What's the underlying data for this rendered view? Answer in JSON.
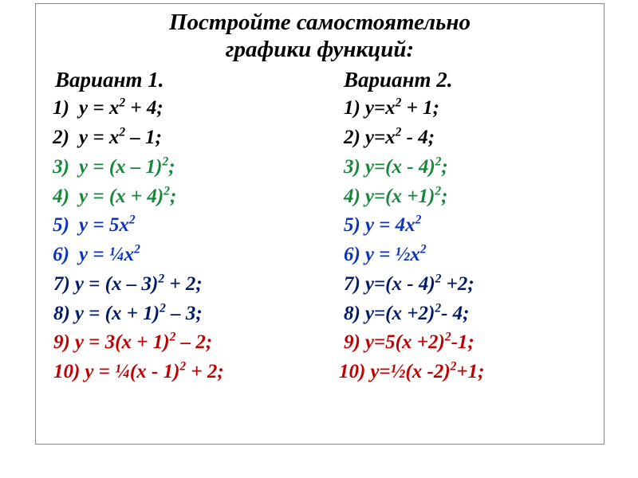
{
  "title_line1": "Постройте самостоятельно",
  "title_line2": "графики функций:",
  "colors": {
    "black": "#000000",
    "green": "#16883a",
    "blue": "#0a33c0",
    "navy": "#001a6a",
    "red": "#c00000",
    "border": "#888888",
    "background": "#ffffff"
  },
  "typography": {
    "family": "Times New Roman",
    "title_fontsize": 29,
    "heading_fontsize": 27,
    "item_fontsize": 25,
    "style": "italic",
    "weight": "bold"
  },
  "variant1": {
    "heading": "Вариант 1.",
    "items": [
      {
        "num": "1)",
        "pre": "у = х",
        "sup": "2",
        "post": " + 4;",
        "color": "black",
        "numstyle": "right"
      },
      {
        "num": "2)",
        "pre": "у = х",
        "sup": "2",
        "post": " – 1;",
        "color": "black",
        "numstyle": "right"
      },
      {
        "num": "3)",
        "pre": "у = (х – 1)",
        "sup": "2",
        "post": ";",
        "color": "green",
        "numstyle": "right"
      },
      {
        "num": "4)",
        "pre": "у = (х + 4)",
        "sup": "2",
        "post": ";",
        "color": "green",
        "numstyle": "right"
      },
      {
        "num": "5)",
        "pre": "у = 5х",
        "sup": "2",
        "post": "",
        "color": "blue",
        "numstyle": "right"
      },
      {
        "num": "6)",
        "pre": "у = ¼х",
        "sup": "2",
        "post": "",
        "color": "blue",
        "numstyle": "right"
      },
      {
        "num": "7)",
        "pre": "у = (х – 3)",
        "sup": "2",
        "post": " + 2;",
        "color": "navy",
        "numstyle": "plain",
        "indent": "b"
      },
      {
        "num": "8)",
        "pre": "у = (х + 1)",
        "sup": "2",
        "post": " – 3;",
        "color": "navy",
        "numstyle": "plain",
        "indent": "b"
      },
      {
        "num": "9)",
        "pre": "у = 3(х + 1)",
        "sup": "2",
        "post": " – 2;",
        "color": "red",
        "numstyle": "plain",
        "indent": "b"
      },
      {
        "num": "10)",
        "pre": "у = ¼(х - 1)",
        "sup": "2",
        "post": " + 2;",
        "color": "red",
        "numstyle": "plain",
        "indent": "b"
      }
    ]
  },
  "variant2": {
    "heading": "Вариант 2.",
    "items": [
      {
        "num": "1)",
        "pre": "у=х",
        "sup": "2",
        "post": " + 1;",
        "color": "black"
      },
      {
        "num": "2)",
        "pre": "у=х",
        "sup": "2",
        "post": " - 4;",
        "color": "black"
      },
      {
        "num": "3)",
        "pre": "у=(х - 4)",
        "sup": "2",
        "post": ";",
        "color": "green"
      },
      {
        "num": "4)",
        "pre": "у=(х +1)",
        "sup": "2",
        "post": ";",
        "color": "green"
      },
      {
        "num": "5)",
        "pre": "у = 4х",
        "sup": "2",
        "post": "",
        "color": "blue"
      },
      {
        "num": "6)",
        "pre": "у = ½х",
        "sup": "2",
        "post": "",
        "color": "blue"
      },
      {
        "num": "7)",
        "pre": "у=(х - 4)",
        "sup": "2",
        "post": " +2;",
        "color": "navy"
      },
      {
        "num": "8)",
        "pre": "у=(х +2)",
        "sup": "2",
        "post": "- 4;",
        "color": "navy"
      },
      {
        "num": "9)",
        "pre": "у=5(х +2)",
        "sup": "2",
        "post": "-1;",
        "color": "red"
      },
      {
        "num": "10)",
        "pre": "у=½(х -2)",
        "sup": "2",
        "post": "+1;",
        "color": "red",
        "last": true
      }
    ]
  }
}
